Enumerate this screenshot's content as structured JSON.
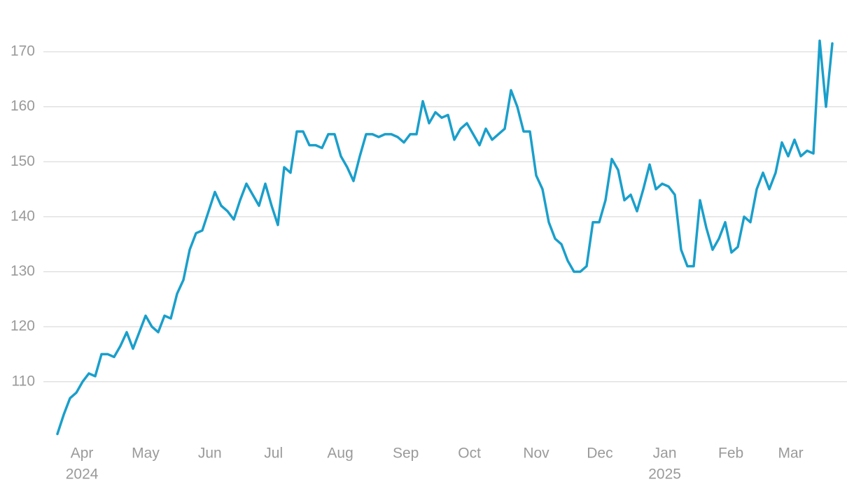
{
  "chart_data": {
    "type": "line",
    "series": [
      {
        "color": "#1a9fcb",
        "values": [
          100.5,
          104,
          107,
          108,
          110,
          111.5,
          111,
          115,
          115,
          114.5,
          116.5,
          119,
          116,
          119,
          122,
          120,
          119,
          122,
          121.5,
          126,
          128.5,
          134,
          137,
          137.5,
          141,
          144.5,
          142,
          141,
          139.5,
          143,
          146,
          144,
          142,
          146,
          142,
          138.5,
          149,
          148,
          155.5,
          155.5,
          153,
          153,
          152.5,
          155,
          155,
          151,
          149,
          146.5,
          151,
          155,
          155,
          154.5,
          155,
          155,
          154.5,
          153.5,
          155,
          155,
          161,
          157,
          159,
          158,
          158.5,
          154,
          156,
          157,
          155,
          153,
          156,
          154,
          155,
          156,
          163,
          160,
          155.5,
          155.5,
          147.5,
          145,
          139,
          136,
          135,
          132,
          130,
          130,
          131,
          139,
          139,
          143,
          150.5,
          148.5,
          143,
          144,
          141,
          145,
          149.5,
          145,
          146,
          145.5,
          144,
          134,
          131,
          131,
          143,
          138,
          134,
          136,
          139,
          133.5,
          134.5,
          140,
          139,
          145,
          148,
          145,
          148,
          153.5,
          151,
          154,
          151,
          152,
          151.5,
          172,
          160,
          171.5
        ]
      }
    ],
    "xlim": [
      0,
      123
    ],
    "xticks": [
      {
        "value": 3.9,
        "label": "Apr"
      },
      {
        "value": 14,
        "label": "May"
      },
      {
        "value": 24.2,
        "label": "Jun"
      },
      {
        "value": 34.3,
        "label": "Jul"
      },
      {
        "value": 44.9,
        "label": "Aug"
      },
      {
        "value": 55.3,
        "label": "Sep"
      },
      {
        "value": 65.4,
        "label": "Oct"
      },
      {
        "value": 76,
        "label": "Nov"
      },
      {
        "value": 86.1,
        "label": "Dec"
      },
      {
        "value": 96.4,
        "label": "Jan"
      },
      {
        "value": 106.9,
        "label": "Feb"
      },
      {
        "value": 116.4,
        "label": "Mar"
      }
    ],
    "year_labels": [
      {
        "value": 3.9,
        "label": "2024"
      },
      {
        "value": 96.4,
        "label": "2025"
      }
    ],
    "ylim": [
      100.3,
      177.5
    ],
    "yticks": [
      110,
      120,
      130,
      140,
      150,
      160,
      170
    ],
    "grid": true
  }
}
